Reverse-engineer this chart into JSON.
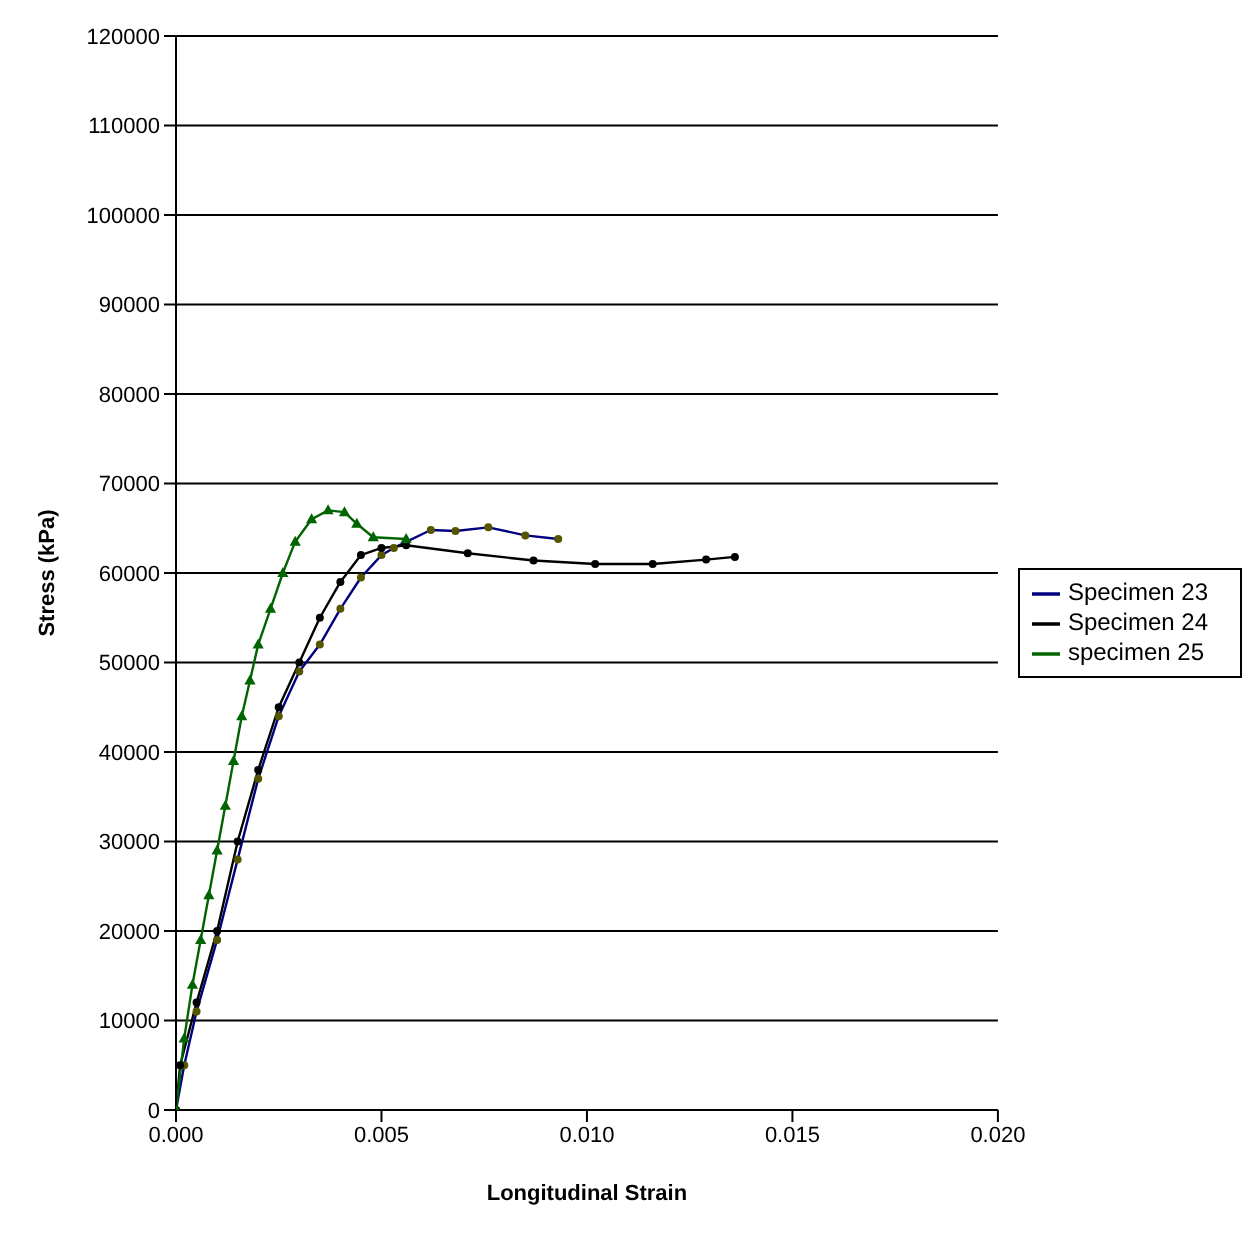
{
  "chart_data": {
    "type": "line",
    "xlabel": "Longitudinal Strain",
    "ylabel": "Stress (kPa)",
    "xlim": [
      0,
      0.02
    ],
    "xticks": [
      {
        "value": 0,
        "label": "0.000"
      },
      {
        "value": 0.005,
        "label": "0.005"
      },
      {
        "value": 0.01,
        "label": "0.010"
      },
      {
        "value": 0.015,
        "label": "0.015"
      },
      {
        "value": 0.02,
        "label": "0.020"
      }
    ],
    "ylim": [
      0,
      120000
    ],
    "yticks": [
      0,
      10000,
      20000,
      30000,
      40000,
      50000,
      60000,
      70000,
      80000,
      90000,
      100000,
      110000,
      120000
    ],
    "grid": "y",
    "legend": "right",
    "series": [
      {
        "name": "Specimen 23",
        "color": "#000080",
        "marker": "circle",
        "x": [
          0,
          0.0002,
          0.0005,
          0.001,
          0.0015,
          0.002,
          0.0025,
          0.003,
          0.0035,
          0.004,
          0.0045,
          0.005,
          0.0053,
          0.0062,
          0.0068,
          0.0076,
          0.0085,
          0.0093
        ],
        "values": [
          0,
          5000,
          11000,
          19000,
          28000,
          37000,
          44000,
          49000,
          52000,
          56000,
          59500,
          62000,
          62800,
          64800,
          64700,
          65100,
          64200,
          63800
        ]
      },
      {
        "name": "Specimen 24",
        "color": "#000000",
        "marker": "circle",
        "x": [
          0,
          0.0001,
          0.0005,
          0.001,
          0.0015,
          0.002,
          0.0025,
          0.003,
          0.0035,
          0.004,
          0.0045,
          0.005,
          0.0056,
          0.0071,
          0.0087,
          0.0102,
          0.0116,
          0.0129,
          0.0136
        ],
        "values": [
          0,
          5000,
          12000,
          20000,
          30000,
          38000,
          45000,
          50000,
          55000,
          59000,
          62000,
          62800,
          63100,
          62200,
          61400,
          61000,
          61000,
          61500,
          61800
        ]
      },
      {
        "name": "specimen 25",
        "color": "#006400",
        "marker": "triangle",
        "x": [
          0,
          0.0002,
          0.0004,
          0.0006,
          0.0008,
          0.001,
          0.0012,
          0.0014,
          0.0016,
          0.0018,
          0.002,
          0.0023,
          0.0026,
          0.0029,
          0.0033,
          0.0037,
          0.0041,
          0.0044,
          0.0048,
          0.0056
        ],
        "values": [
          0,
          8000,
          14000,
          19000,
          24000,
          29000,
          34000,
          39000,
          44000,
          48000,
          52000,
          56000,
          60000,
          63500,
          66000,
          67000,
          66800,
          65500,
          64000,
          63800
        ]
      }
    ]
  }
}
